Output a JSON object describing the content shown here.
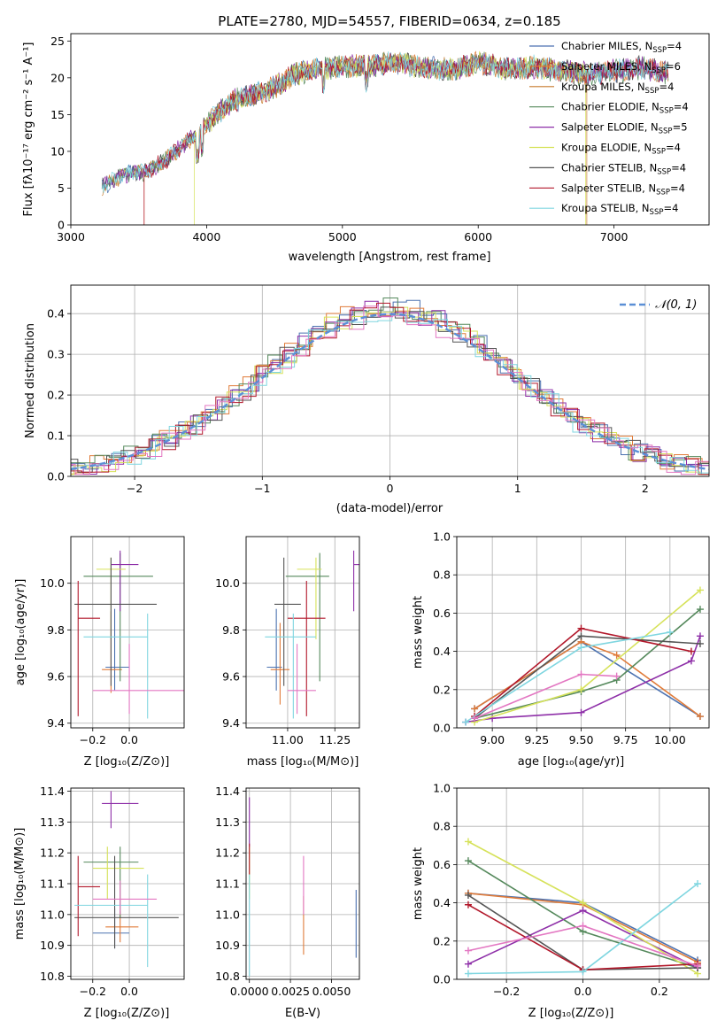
{
  "figure": {
    "title": "PLATE=2780, MJD=54557, FIBERID=0634, z=0.185"
  },
  "colors": {
    "Chabrier MILES": "#4c72b0",
    "Salpeter MILES": "#e07b39",
    "Kroupa MILES": "#c77c2f",
    "Chabrier ELODIE": "#55895c",
    "Salpeter ELODIE": "#8e2fa8",
    "Kroupa ELODIE": "#d6e25a",
    "Chabrier STELIB": "#555555",
    "Salpeter STELIB": "#b2182b",
    "Kroupa STELIB": "#7fd6e0",
    "pink": "#e377c2",
    "normal": "#5b8fd6"
  },
  "legend1": [
    {
      "pre": "Chabrier MILES, N",
      "sub": "SSP",
      "post": "=4",
      "key": "Chabrier MILES"
    },
    {
      "pre": "Salpeter MILES, N",
      "sub": "SSP",
      "post": "=6",
      "key": "Salpeter MILES"
    },
    {
      "pre": "Kroupa MILES, N",
      "sub": "SSP",
      "post": "=4",
      "key": "Kroupa MILES"
    },
    {
      "pre": "Chabrier ELODIE, N",
      "sub": "SSP",
      "post": "=4",
      "key": "Chabrier ELODIE"
    },
    {
      "pre": "Salpeter ELODIE, N",
      "sub": "SSP",
      "post": "=5",
      "key": "Salpeter ELODIE"
    },
    {
      "pre": "Kroupa ELODIE, N",
      "sub": "SSP",
      "post": "=4",
      "key": "Kroupa ELODIE"
    },
    {
      "pre": "Chabrier STELIB, N",
      "sub": "SSP",
      "post": "=4",
      "key": "Chabrier STELIB"
    },
    {
      "pre": "Salpeter STELIB, N",
      "sub": "SSP",
      "post": "=4",
      "key": "Salpeter STELIB"
    },
    {
      "pre": "Kroupa STELIB, N",
      "sub": "SSP",
      "post": "=4",
      "key": "Kroupa STELIB"
    }
  ],
  "labels": {
    "spec_x": "wavelength [Angstrom, rest frame]",
    "spec_y": "Flux [fλ10⁻¹⁷ erg cm⁻² s⁻¹ A⁻¹]",
    "hist_x": "(data-model)/error",
    "hist_y": "Normed distribution",
    "hist_legend": "𝒩(0, 1)",
    "age_y": "age  [log₁₀(age/yr)]",
    "age_x": "age  [log₁₀(age/yr)]",
    "z_x": "Z [log₁₀(Z/Z⊙)]",
    "mass_x": "mass [log₁₀(M/M⊙)]",
    "mass_y": "mass [log₁₀(M/M⊙)]",
    "mw_y": "mass weight",
    "ebv_x": "E(B-V)"
  },
  "chart_data": [
    {
      "type": "line",
      "panel": "spectrum",
      "title": "PLATE=2780, MJD=54557, FIBERID=0634, z=0.185",
      "xlabel": "wavelength [Angstrom, rest frame]",
      "ylabel": "Flux [fλ10⁻¹⁷ erg cm⁻² s⁻¹ A⁻¹]",
      "xlim": [
        3000,
        7700
      ],
      "ylim": [
        0,
        26
      ],
      "xticks": [
        3000,
        4000,
        5000,
        6000,
        7000
      ],
      "yticks": [
        0,
        5,
        10,
        15,
        20,
        25
      ],
      "x": [
        3230,
        3400,
        3550,
        3700,
        3850,
        3950,
        4050,
        4200,
        4350,
        4500,
        4650,
        4800,
        5000,
        5200,
        5400,
        5600,
        5800,
        6000,
        6200,
        6400,
        6600,
        6800,
        7000,
        7200,
        7400
      ],
      "y": [
        5.2,
        6.9,
        7.2,
        8.8,
        11.2,
        12.8,
        14.6,
        16.9,
        17.8,
        18.7,
        20.5,
        21.1,
        21.5,
        21.7,
        22.1,
        21.4,
        21.1,
        22.1,
        21.2,
        21.5,
        21.0,
        20.5,
        20.9,
        21.3,
        20.7
      ]
    },
    {
      "type": "bar",
      "panel": "residual-histogram",
      "xlabel": "(data-model)/error",
      "ylabel": "Normed distribution",
      "xlim": [
        -2.5,
        2.5
      ],
      "ylim": [
        0,
        0.47
      ],
      "xticks": [
        -2,
        -1,
        0,
        1,
        2
      ],
      "yticks": [
        0.0,
        0.1,
        0.2,
        0.3,
        0.4
      ],
      "normal_curve": "N(0,1)"
    },
    {
      "type": "scatter",
      "panel": "age-vs-Z",
      "xlim": [
        -0.32,
        0.3
      ],
      "ylim": [
        9.38,
        10.2
      ],
      "xticks": [
        -0.2,
        0.0
      ],
      "yticks": [
        9.4,
        9.6,
        9.8,
        10.0
      ],
      "points": [
        {
          "key": "Chabrier MILES",
          "x": -0.08,
          "y": 9.64,
          "xerr": [
            0.05,
            0.08
          ],
          "yerr": [
            0.1,
            0.25
          ]
        },
        {
          "key": "Salpeter MILES",
          "x": -0.1,
          "y": 9.63,
          "xerr": [
            0.05,
            0.06
          ],
          "yerr": [
            0.1,
            0.25
          ]
        },
        {
          "key": "Chabrier ELODIE",
          "x": -0.05,
          "y": 10.03,
          "xerr": [
            0.2,
            0.18
          ],
          "yerr": [
            0.45,
            0.1
          ]
        },
        {
          "key": "Salpeter ELODIE",
          "x": -0.05,
          "y": 10.08,
          "xerr": [
            0.05,
            0.1
          ],
          "yerr": [
            0.2,
            0.06
          ]
        },
        {
          "key": "Kroupa ELODIE",
          "x": -0.1,
          "y": 10.06,
          "xerr": [
            0.08,
            0.08
          ],
          "yerr": [
            0.3,
            0.05
          ]
        },
        {
          "key": "Chabrier STELIB",
          "x": -0.1,
          "y": 9.91,
          "xerr": [
            0.2,
            0.25
          ],
          "yerr": [
            0.35,
            0.2
          ]
        },
        {
          "key": "Salpeter STELIB",
          "x": -0.28,
          "y": 9.85,
          "xerr": [
            0.0,
            0.12
          ],
          "yerr": [
            0.42,
            0.16
          ]
        },
        {
          "key": "Kroupa STELIB",
          "x": 0.1,
          "y": 9.77,
          "xerr": [
            0.35,
            0.0
          ],
          "yerr": [
            0.35,
            0.1
          ]
        },
        {
          "key": "pink",
          "x": 0.0,
          "y": 9.54,
          "xerr": [
            0.2,
            0.3
          ],
          "yerr": [
            0.1,
            0.2
          ]
        }
      ]
    },
    {
      "type": "scatter",
      "panel": "age-vs-mass",
      "xlim": [
        10.78,
        11.38
      ],
      "ylim": [
        9.38,
        10.2
      ],
      "xticks": [
        11.0,
        11.25
      ],
      "yticks": [
        9.4,
        9.6,
        9.8,
        10.0
      ],
      "points": [
        {
          "key": "Chabrier MILES",
          "x": 10.94,
          "y": 9.64,
          "xerr": [
            0.05,
            0.03
          ],
          "yerr": [
            0.1,
            0.25
          ]
        },
        {
          "key": "Salpeter MILES",
          "x": 10.96,
          "y": 9.63,
          "xerr": [
            0.05,
            0.05
          ],
          "yerr": [
            0.15,
            0.2
          ]
        },
        {
          "key": "Chabrier ELODIE",
          "x": 11.17,
          "y": 10.03,
          "xerr": [
            0.18,
            0.05
          ],
          "yerr": [
            0.45,
            0.1
          ]
        },
        {
          "key": "Salpeter ELODIE",
          "x": 11.35,
          "y": 10.08,
          "xerr": [
            0.0,
            0.04
          ],
          "yerr": [
            0.2,
            0.06
          ]
        },
        {
          "key": "Kroupa ELODIE",
          "x": 11.15,
          "y": 10.06,
          "xerr": [
            0.1,
            0.03
          ],
          "yerr": [
            0.3,
            0.05
          ]
        },
        {
          "key": "Chabrier STELIB",
          "x": 10.98,
          "y": 9.91,
          "xerr": [
            0.05,
            0.09
          ],
          "yerr": [
            0.35,
            0.2
          ]
        },
        {
          "key": "Salpeter STELIB",
          "x": 11.1,
          "y": 9.85,
          "xerr": [
            0.1,
            0.1
          ],
          "yerr": [
            0.42,
            0.16
          ]
        },
        {
          "key": "Kroupa STELIB",
          "x": 11.03,
          "y": 9.77,
          "xerr": [
            0.15,
            0.12
          ],
          "yerr": [
            0.35,
            0.1
          ]
        },
        {
          "key": "pink",
          "x": 11.05,
          "y": 9.54,
          "xerr": [
            0.05,
            0.1
          ],
          "yerr": [
            0.1,
            0.2
          ]
        }
      ]
    },
    {
      "type": "line",
      "panel": "mass-weight-vs-age",
      "xlim": [
        8.8,
        10.22
      ],
      "ylim": [
        0,
        1.0
      ],
      "xticks": [
        9.0,
        9.25,
        9.5,
        9.75,
        10.0
      ],
      "yticks": [
        0.0,
        0.2,
        0.4,
        0.6,
        0.8,
        1.0
      ],
      "series": [
        {
          "key": "Chabrier MILES",
          "x": [
            8.9,
            9.5,
            10.17
          ],
          "y": [
            0.1,
            0.45,
            0.06
          ]
        },
        {
          "key": "Salpeter MILES",
          "x": [
            8.9,
            9.5,
            9.7,
            10.17
          ],
          "y": [
            0.1,
            0.45,
            0.38,
            0.06
          ]
        },
        {
          "key": "Chabrier ELODIE",
          "x": [
            8.9,
            9.5,
            9.7,
            10.17
          ],
          "y": [
            0.05,
            0.19,
            0.25,
            0.62
          ]
        },
        {
          "key": "Salpeter ELODIE",
          "x": [
            8.85,
            9.0,
            9.5,
            10.12,
            10.17
          ],
          "y": [
            0.03,
            0.05,
            0.08,
            0.35,
            0.48
          ]
        },
        {
          "key": "Kroupa ELODIE",
          "x": [
            8.9,
            9.5,
            10.17
          ],
          "y": [
            0.03,
            0.2,
            0.72
          ]
        },
        {
          "key": "Chabrier STELIB",
          "x": [
            8.9,
            9.5,
            10.17
          ],
          "y": [
            0.05,
            0.48,
            0.44
          ]
        },
        {
          "key": "Salpeter STELIB",
          "x": [
            8.9,
            9.5,
            10.12
          ],
          "y": [
            0.06,
            0.52,
            0.4
          ]
        },
        {
          "key": "Kroupa STELIB",
          "x": [
            8.85,
            9.5,
            10.0
          ],
          "y": [
            0.03,
            0.42,
            0.5
          ]
        },
        {
          "key": "pink",
          "x": [
            8.9,
            9.5,
            9.7
          ],
          "y": [
            0.05,
            0.28,
            0.27
          ]
        }
      ]
    },
    {
      "type": "scatter",
      "panel": "mass-vs-Z",
      "xlim": [
        -0.32,
        0.3
      ],
      "ylim": [
        10.79,
        11.41
      ],
      "xticks": [
        -0.2,
        0.0
      ],
      "yticks": [
        10.8,
        10.9,
        11.0,
        11.1,
        11.2,
        11.3,
        11.4
      ],
      "points": [
        {
          "key": "Chabrier MILES",
          "x": -0.08,
          "y": 10.94,
          "xerr": [
            0.12,
            0.08
          ],
          "yerr": [
            0.05,
            0.08
          ]
        },
        {
          "key": "Salpeter MILES",
          "x": -0.05,
          "y": 10.96,
          "xerr": [
            0.08,
            0.1
          ],
          "yerr": [
            0.05,
            0.05
          ]
        },
        {
          "key": "Chabrier ELODIE",
          "x": -0.05,
          "y": 11.17,
          "xerr": [
            0.2,
            0.1
          ],
          "yerr": [
            0.18,
            0.05
          ]
        },
        {
          "key": "Salpeter ELODIE",
          "x": -0.1,
          "y": 11.36,
          "xerr": [
            0.05,
            0.15
          ],
          "yerr": [
            0.08,
            0.04
          ]
        },
        {
          "key": "Kroupa ELODIE",
          "x": -0.12,
          "y": 11.15,
          "xerr": [
            0.08,
            0.2
          ],
          "yerr": [
            0.1,
            0.07
          ]
        },
        {
          "key": "Chabrier STELIB",
          "x": -0.08,
          "y": 10.99,
          "xerr": [
            0.22,
            0.35
          ],
          "yerr": [
            0.1,
            0.2
          ]
        },
        {
          "key": "Salpeter STELIB",
          "x": -0.28,
          "y": 11.09,
          "xerr": [
            0.0,
            0.12
          ],
          "yerr": [
            0.16,
            0.1
          ]
        },
        {
          "key": "Kroupa STELIB",
          "x": 0.1,
          "y": 11.03,
          "xerr": [
            0.4,
            0.0
          ],
          "yerr": [
            0.2,
            0.1
          ]
        },
        {
          "key": "pink",
          "x": -0.05,
          "y": 11.05,
          "xerr": [
            0.15,
            0.2
          ],
          "yerr": [
            0.05,
            0.06
          ]
        }
      ]
    },
    {
      "type": "scatter",
      "panel": "mass-vs-EBV",
      "xlim": [
        -0.0002,
        0.0067
      ],
      "ylim": [
        10.79,
        11.41
      ],
      "xticks": [
        0.0,
        0.0025,
        0.005
      ],
      "xticklabels": [
        "0.0000",
        "0.0025",
        "0.0050"
      ],
      "yticks": [
        10.8,
        10.9,
        11.0,
        11.1,
        11.2,
        11.3,
        11.4
      ],
      "points": [
        {
          "key": "Chabrier MILES",
          "x": 0.0065,
          "y": 10.96,
          "yerr": [
            0.1,
            0.12
          ]
        },
        {
          "key": "Salpeter MILES",
          "x": 0.0033,
          "y": 10.96,
          "yerr": [
            0.09,
            0.1
          ]
        },
        {
          "key": "Salpeter ELODIE",
          "x": 0.0,
          "y": 11.3,
          "yerr": [
            0.08,
            0.08
          ]
        },
        {
          "key": "Kroupa ELODIE",
          "x": 0.0,
          "y": 11.15,
          "yerr": [
            0.1,
            0.07
          ]
        },
        {
          "key": "Salpeter STELIB",
          "x": 0.0,
          "y": 11.18,
          "yerr": [
            0.05,
            0.05
          ]
        },
        {
          "key": "Kroupa STELIB",
          "x": 0.0,
          "y": 11.0,
          "yerr": [
            0.2,
            0.13
          ]
        },
        {
          "key": "pink",
          "x": 0.0033,
          "y": 11.05,
          "yerr": [
            0.05,
            0.14
          ]
        }
      ]
    },
    {
      "type": "line",
      "panel": "mass-weight-vs-Z",
      "xlim": [
        -0.33,
        0.33
      ],
      "ylim": [
        0,
        1.0
      ],
      "xticks": [
        -0.2,
        0.0,
        0.2
      ],
      "yticks": [
        0.0,
        0.2,
        0.4,
        0.6,
        0.8,
        1.0
      ],
      "series": [
        {
          "key": "Chabrier MILES",
          "x": [
            -0.3,
            0.0,
            0.3
          ],
          "y": [
            0.45,
            0.4,
            0.1
          ]
        },
        {
          "key": "Salpeter MILES",
          "x": [
            -0.3,
            0.0,
            0.3
          ],
          "y": [
            0.45,
            0.39,
            0.09
          ]
        },
        {
          "key": "Chabrier ELODIE",
          "x": [
            -0.3,
            0.0,
            0.3
          ],
          "y": [
            0.62,
            0.25,
            0.06
          ]
        },
        {
          "key": "Salpeter ELODIE",
          "x": [
            -0.3,
            0.0,
            0.3
          ],
          "y": [
            0.08,
            0.36,
            0.06
          ]
        },
        {
          "key": "Kroupa ELODIE",
          "x": [
            -0.3,
            0.0,
            0.3
          ],
          "y": [
            0.72,
            0.4,
            0.03
          ]
        },
        {
          "key": "Chabrier STELIB",
          "x": [
            -0.3,
            0.0,
            0.3
          ],
          "y": [
            0.44,
            0.05,
            0.06
          ]
        },
        {
          "key": "Salpeter STELIB",
          "x": [
            -0.3,
            0.0,
            0.3
          ],
          "y": [
            0.39,
            0.05,
            0.08
          ]
        },
        {
          "key": "Kroupa STELIB",
          "x": [
            -0.3,
            0.0,
            0.3
          ],
          "y": [
            0.03,
            0.04,
            0.5
          ]
        },
        {
          "key": "pink",
          "x": [
            -0.3,
            0.0,
            0.3
          ],
          "y": [
            0.15,
            0.28,
            0.07
          ]
        }
      ]
    }
  ]
}
